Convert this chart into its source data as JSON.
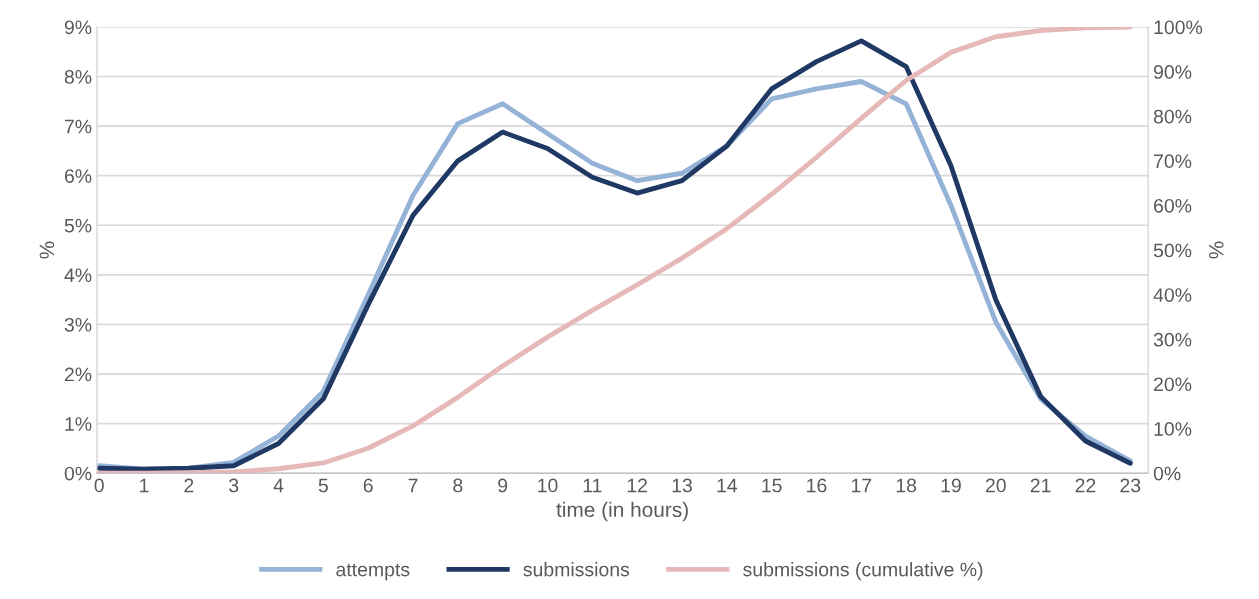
{
  "chart_data": {
    "type": "line",
    "xlabel": "time (in hours)",
    "ylabel": "%",
    "y2label": "%",
    "categories": [
      "0",
      "1",
      "2",
      "3",
      "4",
      "5",
      "6",
      "7",
      "8",
      "9",
      "10",
      "11",
      "12",
      "13",
      "14",
      "15",
      "16",
      "17",
      "18",
      "19",
      "20",
      "21",
      "22",
      "23"
    ],
    "series": [
      {
        "name": "attempts",
        "color": "#95b3d7",
        "values": [
          0.15,
          0.08,
          0.1,
          0.22,
          0.75,
          1.65,
          3.6,
          5.6,
          7.05,
          7.45,
          6.85,
          6.25,
          5.9,
          6.05,
          6.6,
          7.55,
          7.75,
          7.9,
          7.45,
          5.4,
          3.05,
          1.5,
          0.75,
          0.25
        ]
      },
      {
        "name": "submissions",
        "color": "#1f3864",
        "values": [
          0.1,
          0.08,
          0.1,
          0.15,
          0.6,
          1.5,
          3.4,
          5.2,
          6.3,
          6.88,
          6.55,
          5.97,
          5.65,
          5.9,
          6.6,
          7.75,
          8.3,
          8.72,
          8.2,
          6.2,
          3.5,
          1.55,
          0.65,
          0.2
        ]
      },
      {
        "name": "submissions (cumulative %)",
        "color": "#e6b9b8",
        "axis": "y2",
        "values": [
          0,
          0,
          0.1,
          0.3,
          1,
          2.3,
          5.6,
          10.6,
          17,
          24,
          30.5,
          36.5,
          42.2,
          48.2,
          54.8,
          62.5,
          70.8,
          79.5,
          88,
          94.3,
          97.8,
          99.2,
          99.8,
          100
        ]
      }
    ],
    "ylim": [
      0,
      9
    ],
    "yticks": [
      {
        "value": 0,
        "label": "0%"
      },
      {
        "value": 1,
        "label": "1%"
      },
      {
        "value": 2,
        "label": "2%"
      },
      {
        "value": 3,
        "label": "3%"
      },
      {
        "value": 4,
        "label": "4%"
      },
      {
        "value": 5,
        "label": "5%"
      },
      {
        "value": 6,
        "label": "6%"
      },
      {
        "value": 7,
        "label": "7%"
      },
      {
        "value": 8,
        "label": "8%"
      },
      {
        "value": 9,
        "label": "9%"
      }
    ],
    "y2lim": [
      0,
      100
    ],
    "y2ticks": [
      {
        "value": 0,
        "label": "0%"
      },
      {
        "value": 10,
        "label": "10%"
      },
      {
        "value": 20,
        "label": "20%"
      },
      {
        "value": 30,
        "label": "30%"
      },
      {
        "value": 40,
        "label": "40%"
      },
      {
        "value": 50,
        "label": "50%"
      },
      {
        "value": 60,
        "label": "60%"
      },
      {
        "value": 70,
        "label": "70%"
      },
      {
        "value": 80,
        "label": "80%"
      },
      {
        "value": 90,
        "label": "90%"
      },
      {
        "value": 100,
        "label": "100%"
      }
    ],
    "grid": "y",
    "legend": "bottom",
    "marker": "none",
    "line_style": "solid"
  }
}
